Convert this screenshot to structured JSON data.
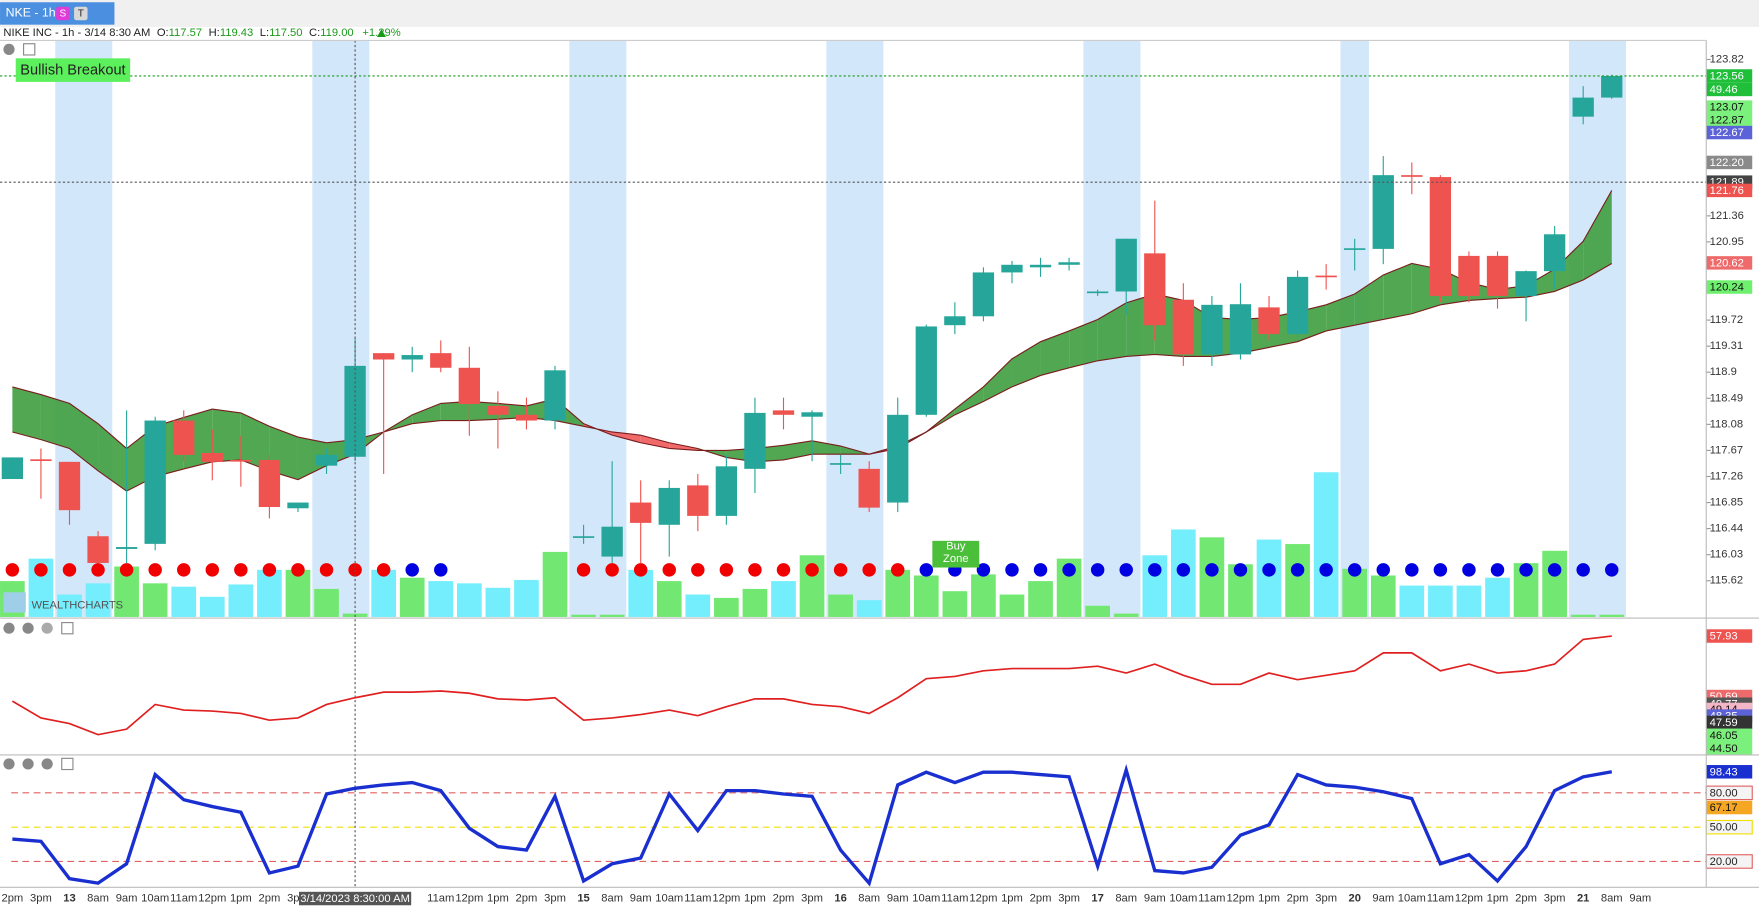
{
  "header": {
    "tab": "NKE - 1hr",
    "badges": [
      "S",
      "T"
    ],
    "symbol": "NIKE INC - 1h - 3/14 8:30 AM",
    "ohlc": [
      {
        "key": "O:",
        "value": "117.57"
      },
      {
        "key": "H:",
        "value": "119.43"
      },
      {
        "key": "L:",
        "value": "117.50"
      },
      {
        "key": "C:",
        "value": "119.00"
      }
    ],
    "change": "+1.29%"
  },
  "annotations": {
    "signal": "Bullish Breakout",
    "zone": "Buy Zone",
    "watermark": "WEALTHCHARTS"
  },
  "chart_data": [
    {
      "type": "candlestick",
      "categories": [
        "2pm",
        "3pm",
        "13",
        "8am",
        "9am",
        "10am",
        "11am",
        "12pm",
        "1pm",
        "2pm",
        "3pm",
        null,
        null,
        null,
        null,
        "11am",
        "12pm",
        "1pm",
        "2pm",
        "3pm",
        "15",
        "8am",
        "9am",
        "10am",
        "11am",
        "12pm",
        "1pm",
        "2pm",
        "3pm",
        "16",
        "8am",
        "9am",
        "10am",
        "11am",
        "12pm",
        "1pm",
        "2pm",
        "3pm",
        "17",
        "8am",
        "9am",
        "10am",
        "11am",
        "12pm",
        "1pm",
        "2pm",
        "3pm",
        "20",
        "9am",
        "10am",
        "11am",
        "12pm",
        "1pm",
        "2pm",
        "3pm",
        "21",
        "8am",
        "9am"
      ],
      "open": [
        117.22,
        117.53,
        117.49,
        116.32,
        116.12,
        116.2,
        118.14,
        117.63,
        117.52,
        117.52,
        116.76,
        117.43,
        117.57,
        119.2,
        119.1,
        119.2,
        118.97,
        118.37,
        118.23,
        118.14,
        116.3,
        116.0,
        116.85,
        116.5,
        117.12,
        116.64,
        117.38,
        118.3,
        118.2,
        117.45,
        117.38,
        116.85,
        118.23,
        119.64,
        119.78,
        120.47,
        120.55,
        120.59,
        120.15,
        120.17,
        120.77,
        120.04,
        119.18,
        119.18,
        119.92,
        119.5,
        120.42,
        120.83,
        120.84,
        122.0,
        121.97,
        120.73,
        120.73,
        120.1,
        120.49,
        122.92,
        123.22,
        null
      ],
      "high": [
        117.56,
        117.7,
        117.49,
        116.4,
        118.3,
        118.2,
        118.3,
        118.0,
        117.9,
        117.6,
        116.85,
        117.7,
        119.43,
        119.2,
        119.3,
        119.4,
        119.3,
        118.6,
        118.5,
        119.0,
        116.5,
        117.5,
        117.2,
        117.2,
        117.3,
        117.6,
        118.5,
        118.5,
        118.3,
        117.6,
        117.5,
        118.5,
        119.65,
        120.0,
        120.55,
        120.65,
        120.7,
        120.7,
        120.2,
        121.0,
        121.6,
        120.3,
        120.1,
        120.3,
        120.1,
        120.5,
        120.6,
        121.0,
        122.3,
        122.2,
        122.0,
        120.8,
        120.8,
        120.5,
        121.2,
        123.4,
        123.58,
        null
      ],
      "low": [
        117.22,
        116.91,
        116.5,
        115.88,
        115.9,
        116.1,
        117.5,
        117.2,
        117.1,
        116.6,
        116.7,
        117.3,
        117.5,
        117.3,
        118.9,
        118.9,
        117.9,
        117.7,
        118.0,
        118.0,
        116.2,
        115.9,
        115.9,
        116.0,
        116.4,
        116.5,
        117.0,
        118.0,
        117.5,
        117.3,
        116.7,
        116.7,
        118.2,
        119.5,
        119.7,
        120.3,
        120.4,
        120.5,
        120.1,
        119.8,
        119.4,
        119.0,
        119.0,
        119.1,
        119.4,
        119.4,
        120.2,
        120.5,
        120.6,
        121.7,
        120.0,
        120.0,
        119.9,
        119.7,
        120.2,
        122.8,
        123.2,
        null
      ],
      "close": [
        117.56,
        117.51,
        116.73,
        115.9,
        116.15,
        118.14,
        117.6,
        117.49,
        117.5,
        116.78,
        116.85,
        117.6,
        119.0,
        119.1,
        119.17,
        118.97,
        118.4,
        118.23,
        118.14,
        118.93,
        116.32,
        116.47,
        116.53,
        117.08,
        116.64,
        117.42,
        118.26,
        118.23,
        118.27,
        117.47,
        116.77,
        118.23,
        119.62,
        119.78,
        120.47,
        120.59,
        120.59,
        120.63,
        120.17,
        121.0,
        119.64,
        119.18,
        119.96,
        119.97,
        119.5,
        120.4,
        120.41,
        120.85,
        122.0,
        121.98,
        120.1,
        120.1,
        120.1,
        120.49,
        121.07,
        123.22,
        123.56,
        null
      ],
      "up_color": "#26a69a",
      "down_color": "#ef5350",
      "volume": [
        32,
        52,
        20,
        30,
        45,
        30,
        27,
        18,
        29,
        42,
        42,
        25,
        3,
        42,
        35,
        32,
        30,
        26,
        33,
        58,
        2,
        2,
        42,
        32,
        20,
        17,
        25,
        32,
        55,
        20,
        15,
        42,
        37,
        23,
        38,
        20,
        32,
        52,
        10,
        3,
        55,
        78,
        71,
        47,
        69,
        65,
        129,
        43,
        37,
        28,
        28,
        28,
        35,
        48,
        59,
        2,
        2,
        null
      ],
      "volume_up_color": "#72e872",
      "volume_down_color": "#74eefc",
      "ma_fast": [
        118.67,
        118.55,
        118.41,
        118.09,
        117.7,
        118.05,
        118.19,
        118.32,
        118.26,
        118.05,
        117.88,
        117.79,
        117.84,
        117.96,
        118.23,
        118.41,
        118.44,
        118.41,
        118.37,
        118.48,
        118.09,
        117.91,
        117.79,
        117.7,
        117.67,
        117.67,
        117.7,
        117.75,
        117.82,
        117.74,
        117.61,
        117.7,
        117.96,
        118.32,
        118.67,
        119.11,
        119.38,
        119.55,
        119.73,
        119.99,
        120.13,
        120.03,
        119.76,
        119.73,
        119.76,
        119.85,
        119.96,
        120.13,
        120.43,
        120.61,
        120.52,
        120.31,
        120.2,
        120.26,
        120.52,
        120.96,
        121.76,
        null
      ],
      "ma_slow": [
        117.96,
        117.84,
        117.7,
        117.35,
        117.03,
        117.26,
        117.38,
        117.49,
        117.52,
        117.35,
        117.21,
        117.43,
        117.61,
        117.96,
        118.09,
        118.14,
        118.14,
        118.16,
        118.19,
        118.14,
        118.05,
        117.96,
        117.91,
        117.79,
        117.7,
        117.56,
        117.49,
        117.52,
        117.61,
        117.61,
        117.61,
        117.74,
        117.96,
        118.23,
        118.44,
        118.67,
        118.85,
        118.97,
        119.08,
        119.15,
        119.18,
        119.15,
        119.15,
        119.2,
        119.29,
        119.38,
        119.55,
        119.64,
        119.73,
        119.82,
        119.96,
        120.03,
        120.06,
        120.08,
        120.17,
        120.35,
        120.61,
        null
      ],
      "signal_colors": [
        "#f00000",
        "#f00000",
        "#f00000",
        "#f00000",
        "#f00000",
        "#f00000",
        "#f00000",
        "#f00000",
        "#f00000",
        "#f00000",
        "#f00000",
        "#f00000",
        "#f00000",
        "#f00000",
        "#0000e0",
        "#0000e0",
        null,
        null,
        null,
        null,
        "#f00000",
        "#f00000",
        "#f00000",
        "#f00000",
        "#f00000",
        "#f00000",
        "#f00000",
        "#f00000",
        "#f00000",
        "#f00000",
        "#f00000",
        "#f00000",
        "#0000e0",
        "#0000e0",
        "#0000e0",
        "#0000e0",
        "#0000e0",
        "#0000e0",
        "#0000e0",
        "#0000e0",
        "#0000e0",
        "#0000e0",
        "#0000e0",
        "#0000e0",
        "#0000e0",
        "#0000e0",
        "#0000e0",
        "#0000e0",
        "#0000e0",
        "#0000e0",
        "#0000e0",
        "#0000e0",
        "#0000e0",
        "#0000e0",
        "#0000e0",
        "#0000e0",
        "#0000e0",
        null
      ],
      "ylim": [
        115.05,
        124.12
      ],
      "yticks": [
        123.82,
        121.36,
        120.95,
        119.72,
        119.31,
        118.9,
        118.49,
        118.08,
        117.67,
        117.26,
        116.85,
        116.44,
        116.03,
        115.62
      ],
      "price_labels": [
        {
          "value": 123.56,
          "color": "#1fbf3a",
          "text_color": "#ffffff"
        },
        {
          "value": 123.07,
          "color": "#7cf07c",
          "text_color": "#111111"
        },
        {
          "value": 122.87,
          "color": "#7cf07c",
          "text_color": "#111111"
        },
        {
          "value": 122.67,
          "color": "#5c63d8",
          "text_color": "#ffffff"
        },
        {
          "value": 122.2,
          "label": "122.20",
          "color": "#8a8a8a",
          "text_color": "#ffffff"
        },
        {
          "value": 121.89,
          "color": "#444444",
          "text_color": "#ffffff"
        },
        {
          "value": 121.76,
          "color": "#ef5350",
          "text_color": "#ffffff"
        },
        {
          "value": 120.62,
          "color": "#ef6b6b",
          "text_color": "#ffffff"
        },
        {
          "value": 120.24,
          "color": "#6ef06e",
          "text_color": "#111111"
        }
      ],
      "countdown": 49.46,
      "last_price": 123.56,
      "crosshair_price": 121.89,
      "crosshair_label": "3/14/2023 8:30:00 AM"
    },
    {
      "type": "line",
      "series": [
        {
          "color": "#e02020",
          "values": [
            50.14,
            48.13,
            47.46,
            46.12,
            46.79,
            49.74,
            49.07,
            48.94,
            48.67,
            47.86,
            48.13,
            49.74,
            50.55,
            51.22,
            51.22,
            51.35,
            51.08,
            50.41,
            50.28,
            50.55,
            47.86,
            48.13,
            48.53,
            49.07,
            48.4,
            49.47,
            50.41,
            50.41,
            49.74,
            49.47,
            48.67,
            50.55,
            52.83,
            53.1,
            53.77,
            54.04,
            54.04,
            54.04,
            54.31,
            53.5,
            54.57,
            53.23,
            52.16,
            52.16,
            53.5,
            52.7,
            53.23,
            53.77,
            55.92,
            55.92,
            53.77,
            54.57,
            53.5,
            53.77,
            54.57,
            57.53,
            57.93,
            null
          ]
        }
      ],
      "ylim": [
        43.83,
        58.6
      ],
      "axis_labels": [
        {
          "value": 57.93,
          "color": "#ef5350",
          "text_color": "#ffffff"
        },
        {
          "value": 50.69,
          "color": "#ef6b6b",
          "text_color": "#ffffff"
        },
        {
          "value": 49.77,
          "color": "#555555",
          "text_color": "#ffffff"
        },
        {
          "value": 49.14,
          "color": "#f4b6c6",
          "text_color": "#111111"
        },
        {
          "value": 48.35,
          "color": "#5c63d8",
          "text_color": "#ffffff"
        },
        {
          "value": 47.59,
          "color": "#333333",
          "text_color": "#ffffff"
        },
        {
          "value": 46.05,
          "color": "#7cf07c",
          "text_color": "#111111"
        },
        {
          "value": 44.5,
          "label": "44.50",
          "color": "#7cf07c",
          "text_color": "#111111"
        }
      ]
    },
    {
      "type": "line",
      "series": [
        {
          "color": "#1a2fd0",
          "values": [
            39.6,
            37.6,
            5,
            1,
            18,
            96,
            74,
            68,
            63,
            10,
            16,
            79,
            84,
            87,
            89,
            82,
            49,
            33,
            30,
            77,
            3,
            18,
            23,
            79,
            47,
            82,
            82,
            79,
            77,
            30,
            1,
            87,
            98,
            89,
            98,
            98,
            96,
            94,
            16,
            100,
            12,
            10,
            15,
            43,
            52,
            96,
            87,
            85,
            81,
            75,
            18,
            26,
            3,
            33,
            82,
            94,
            98.43,
            null
          ]
        }
      ],
      "ylim": [
        -1.6,
        110.2
      ],
      "levels": [
        {
          "value": 80,
          "label": "80.00",
          "color": "#e06060"
        },
        {
          "value": 50,
          "label": "50.00",
          "color": "#f0e000"
        },
        {
          "value": 20,
          "label": "20.00",
          "color": "#e06060"
        }
      ],
      "axis_labels": [
        {
          "value": 98.43,
          "color": "#1a2fd0",
          "text_color": "#ffffff"
        },
        {
          "value": 67.17,
          "color": "#f5a623",
          "text_color": "#111111"
        }
      ]
    }
  ]
}
